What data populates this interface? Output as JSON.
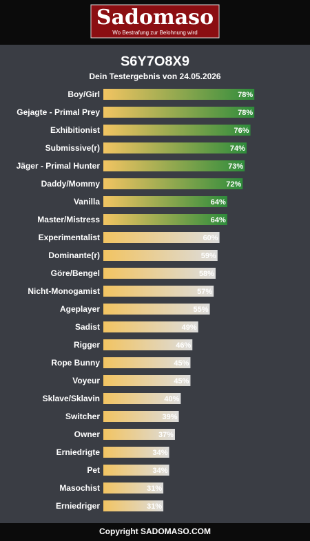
{
  "header": {
    "logo": "Sadomaso",
    "tagline": "Wo Bestrafung zur Belohnung wird"
  },
  "footer": "Copyright SADOMASO.COM",
  "chart_data": {
    "type": "bar",
    "orientation": "horizontal",
    "title": "S6Y7O8X9",
    "subtitle": "Dein Testergebnis von 24.05.2026",
    "categories": [
      "Boy/Girl",
      "Gejagte - Primal Prey",
      "Exhibitionist",
      "Submissive(r)",
      "Jäger - Primal Hunter",
      "Daddy/Mommy",
      "Vanilla",
      "Master/Mistress",
      "Experimentalist",
      "Dominante(r)",
      "Göre/Bengel",
      "Nicht-Monogamist",
      "Ageplayer",
      "Sadist",
      "Rigger",
      "Rope Bunny",
      "Voyeur",
      "Sklave/Sklavin",
      "Switcher",
      "Owner",
      "Erniedrigte",
      "Pet",
      "Masochist",
      "Erniedriger"
    ],
    "values": [
      78,
      78,
      76,
      74,
      73,
      72,
      64,
      64,
      60,
      59,
      58,
      57,
      55,
      49,
      46,
      45,
      45,
      40,
      39,
      37,
      34,
      34,
      31,
      31
    ],
    "value_labels": [
      "78%",
      "78%",
      "76%",
      "74%",
      "73%",
      "72%",
      "64%",
      "64%",
      "60%",
      "59%",
      "58%",
      "57%",
      "55%",
      "49%",
      "46%",
      "45%",
      "45%",
      "40%",
      "39%",
      "37%",
      "34%",
      "34%",
      "31%",
      "31%"
    ],
    "gradient_start": "#f2c462",
    "colors": [
      "#2f8c3c",
      "#2f8c3c",
      "#2f8c3c",
      "#2f8c3c",
      "#2f8c3c",
      "#2f8c3c",
      "#2f8c3c",
      "#2f8c3c",
      "#dcdcdc",
      "#dcdcdc",
      "#dcdcdc",
      "#dcdcdc",
      "#dcdcdc",
      "#dcdcdc",
      "#dcdcdc",
      "#dcdcdc",
      "#dcdcdc",
      "#dcdcdc",
      "#dcdcdc",
      "#dcdcdc",
      "#dcdcdc",
      "#dcdcdc",
      "#dcdcdc",
      "#dcdcdc"
    ],
    "xlim": [
      0,
      100
    ]
  }
}
